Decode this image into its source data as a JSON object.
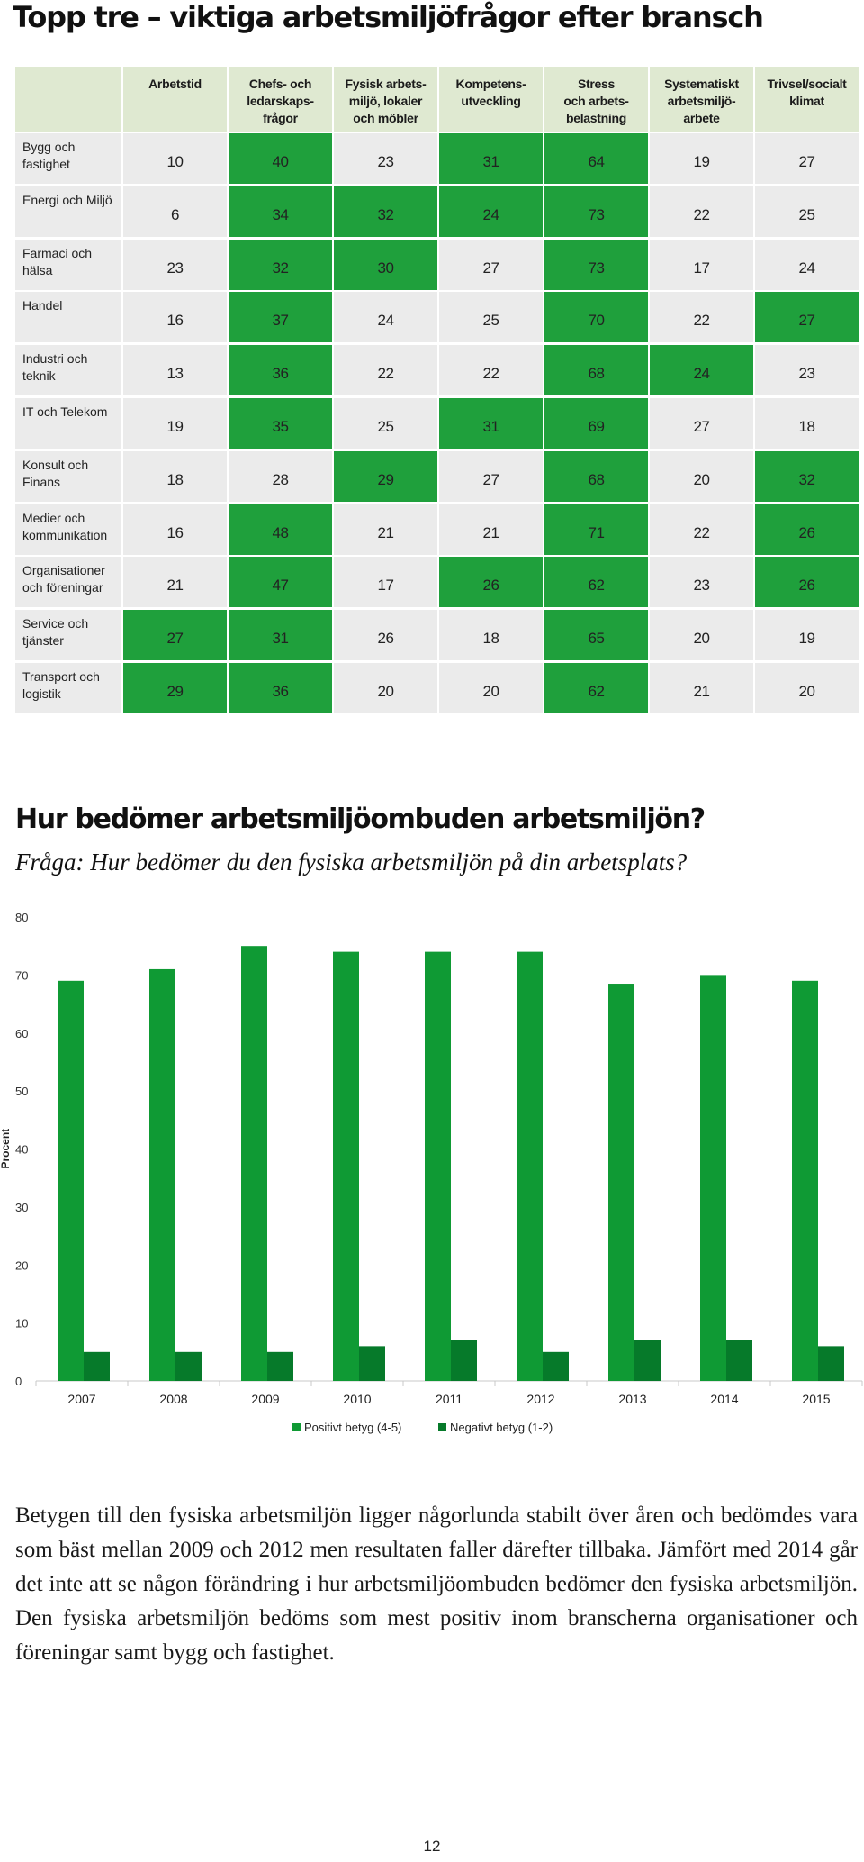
{
  "page_title": "Topp tre – viktiga arbetsmiljöfrågor efter bransch",
  "table": {
    "headers": [
      "Arbetstid",
      "Chefs- och\nledarskaps-\nfrågor",
      "Fysisk arbets-\nmiljö, lokaler\noch möbler",
      "Kompetens-\nutveckling",
      "Stress\noch arbets-\nbelastning",
      "Systematiskt\narbetsmiljö-\narbete",
      "Trivsel/socialt\nklimat"
    ],
    "rows": [
      {
        "label": "Bygg och\nfastighet",
        "values": [
          "10",
          "40",
          "23",
          "31",
          "64",
          "19",
          "27"
        ],
        "highlight": [
          false,
          true,
          false,
          true,
          true,
          false,
          false
        ]
      },
      {
        "label": "Energi och Miljö",
        "values": [
          "6",
          "34",
          "32",
          "24",
          "73",
          "22",
          "25"
        ],
        "highlight": [
          false,
          true,
          true,
          true,
          true,
          false,
          false
        ]
      },
      {
        "label": "Farmaci och\nhälsa",
        "values": [
          "23",
          "32",
          "30",
          "27",
          "73",
          "17",
          "24"
        ],
        "highlight": [
          false,
          true,
          true,
          false,
          true,
          false,
          false
        ]
      },
      {
        "label": "Handel",
        "values": [
          "16",
          "37",
          "24",
          "25",
          "70",
          "22",
          "27"
        ],
        "highlight": [
          false,
          true,
          false,
          false,
          true,
          false,
          true
        ]
      },
      {
        "label": "Industri och\nteknik",
        "values": [
          "13",
          "36",
          "22",
          "22",
          "68",
          "24",
          "23"
        ],
        "highlight": [
          false,
          true,
          false,
          false,
          true,
          true,
          false
        ]
      },
      {
        "label": "IT och Telekom",
        "values": [
          "19",
          "35",
          "25",
          "31",
          "69",
          "27",
          "18"
        ],
        "highlight": [
          false,
          true,
          false,
          true,
          true,
          false,
          false
        ]
      },
      {
        "label": "Konsult och\nFinans",
        "values": [
          "18",
          "28",
          "29",
          "27",
          "68",
          "20",
          "32"
        ],
        "highlight": [
          false,
          false,
          true,
          false,
          true,
          false,
          true
        ]
      },
      {
        "label": "Medier och\nkommunikation",
        "values": [
          "16",
          "48",
          "21",
          "21",
          "71",
          "22",
          "26"
        ],
        "highlight": [
          false,
          true,
          false,
          false,
          true,
          false,
          true
        ]
      },
      {
        "label": "Organisationer\noch föreningar",
        "values": [
          "21",
          "47",
          "17",
          "26",
          "62",
          "23",
          "26"
        ],
        "highlight": [
          false,
          true,
          false,
          true,
          true,
          false,
          true
        ]
      },
      {
        "label": "Service och\ntjänster",
        "values": [
          "27",
          "31",
          "26",
          "18",
          "65",
          "20",
          "19"
        ],
        "highlight": [
          true,
          true,
          false,
          false,
          true,
          false,
          false
        ]
      },
      {
        "label": "Transport och\nlogistik",
        "values": [
          "29",
          "36",
          "20",
          "20",
          "62",
          "21",
          "20"
        ],
        "highlight": [
          true,
          true,
          false,
          false,
          true,
          false,
          false
        ]
      }
    ]
  },
  "section2_title": "Hur bedömer arbetsmiljöombuden arbetsmiljön?",
  "question": "Fråga: Hur bedömer du den fysiska arbetsmiljön på din arbetsplats?",
  "chart_data": {
    "type": "bar",
    "categories": [
      "2007",
      "2008",
      "2009",
      "2010",
      "2011",
      "2012",
      "2013",
      "2014",
      "2015"
    ],
    "series": [
      {
        "name": "Positivt betyg (4-5)",
        "values": [
          69,
          71,
          75,
          74,
          74,
          74,
          68.5,
          70,
          69
        ]
      },
      {
        "name": "Negativt betyg (1-2)",
        "values": [
          5,
          5,
          5,
          6,
          7,
          5,
          7,
          7,
          6
        ]
      }
    ],
    "ylabel": "Procent",
    "ylim": [
      0,
      80
    ],
    "yticks": [
      "0",
      "10",
      "20",
      "30",
      "40",
      "50",
      "60",
      "70",
      "80"
    ],
    "legend": "bottom",
    "colors": [
      "#0f9a34",
      "#067a2a"
    ]
  },
  "colors": {
    "highlight": "#1fa03c",
    "cell": "#ebebeb",
    "header": "#dfe9d1"
  },
  "body_text": "Betygen till den fysiska arbetsmiljön ligger någorlunda stabilt över åren och bedömdes vara som bäst mellan 2009 och 2012 men resultaten faller därefter tillbaka. Jämfört med 2014 går det inte att se någon förändring i hur arbetsmiljöombuden bedömer den fysiska arbetsmiljön. Den fysiska arbetsmiljön bedöms som mest positiv inom branscherna organisationer och föreningar samt bygg och fastighet.",
  "page_number": "12"
}
